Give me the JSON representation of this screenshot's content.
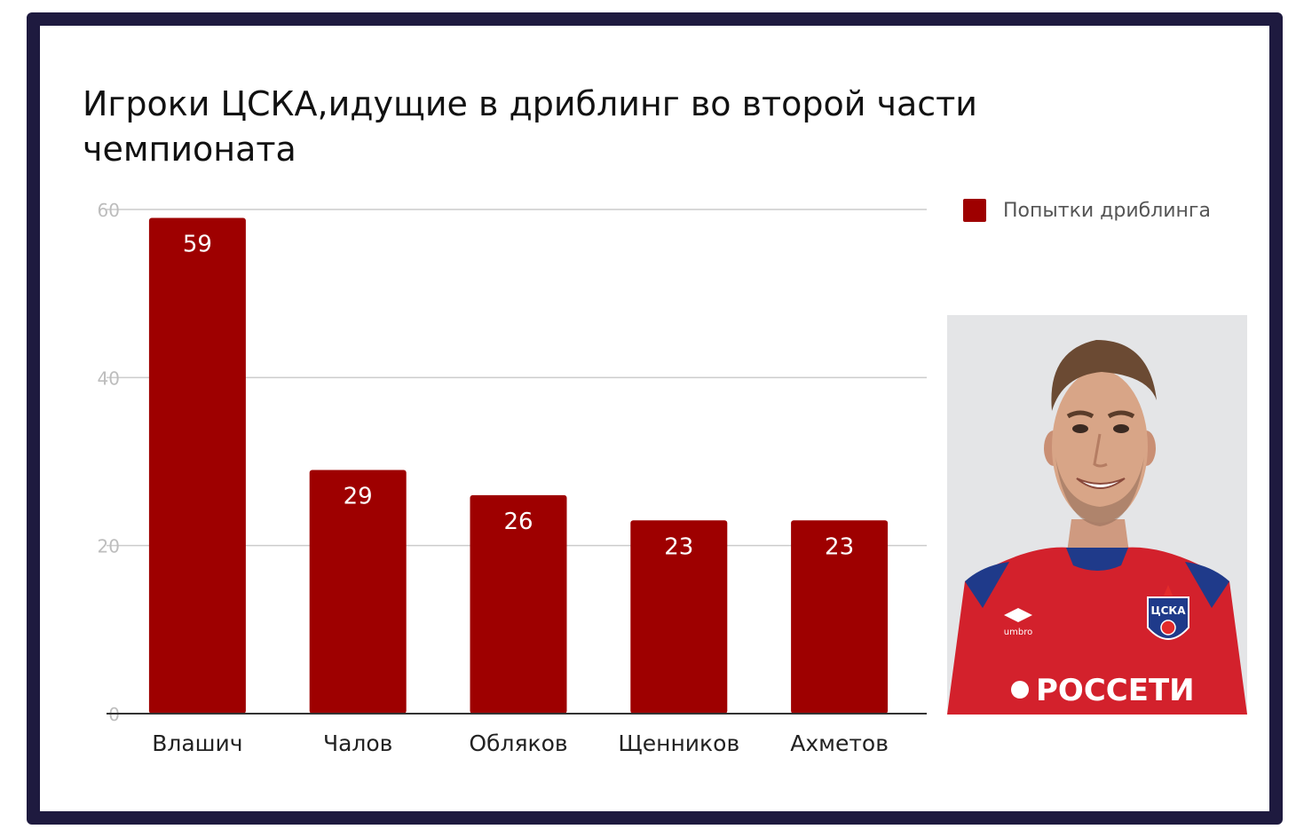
{
  "title": "Игроки ЦСКА,идущие в дриблинг во второй части чемпионата",
  "colors": {
    "bar": "#9e0000",
    "frame": "#1e1a3f",
    "grid": "#cccccc",
    "axis": "#333333",
    "jersey": "#d3212c",
    "jersey_trim": "#1f3a8a"
  },
  "chart_data": {
    "type": "bar",
    "title": "Игроки ЦСКА,идущие в дриблинг во второй части чемпионата",
    "categories": [
      "Влашич",
      "Чалов",
      "Обляков",
      "Щенников",
      "Ахметов"
    ],
    "series": [
      {
        "name": "Попытки дриблинга",
        "values": [
          59,
          29,
          26,
          23,
          23
        ]
      }
    ],
    "ylim": [
      0,
      60
    ],
    "yticks": [
      0,
      20,
      40,
      60
    ],
    "xlabel": "",
    "ylabel": "",
    "grid": true,
    "legend": "right",
    "data_labels": true
  },
  "photo": {
    "jersey_brand": "umbro",
    "sponsor": "РОССЕТИ",
    "club_badge": "ЦСКА"
  }
}
